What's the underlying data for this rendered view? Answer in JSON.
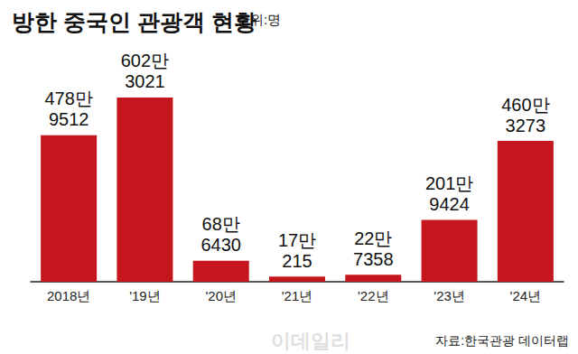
{
  "chart_data": {
    "type": "bar",
    "title": "방한 중국인 관광객 현황",
    "subtitle": "단위:명",
    "annotations": [
      "자료:한국관광 데이터랩",
      "이데일리"
    ],
    "categories": [
      "2018년",
      "'19년",
      "'20년",
      "'21년",
      "'22년",
      "'23년",
      "'24년"
    ],
    "values": [
      4789512,
      6023021,
      686430,
      170215,
      227358,
      2019424,
      4603273
    ],
    "value_labels": [
      "478만\n9512",
      "602만\n3021",
      "68만\n6430",
      "17만\n215",
      "22만\n7358",
      "201만\n9424",
      "460만\n3273"
    ],
    "color": "#c4161c",
    "ylim": [
      0,
      6200000
    ],
    "data_labels": true,
    "tick_labels": "x",
    "grid": false
  }
}
